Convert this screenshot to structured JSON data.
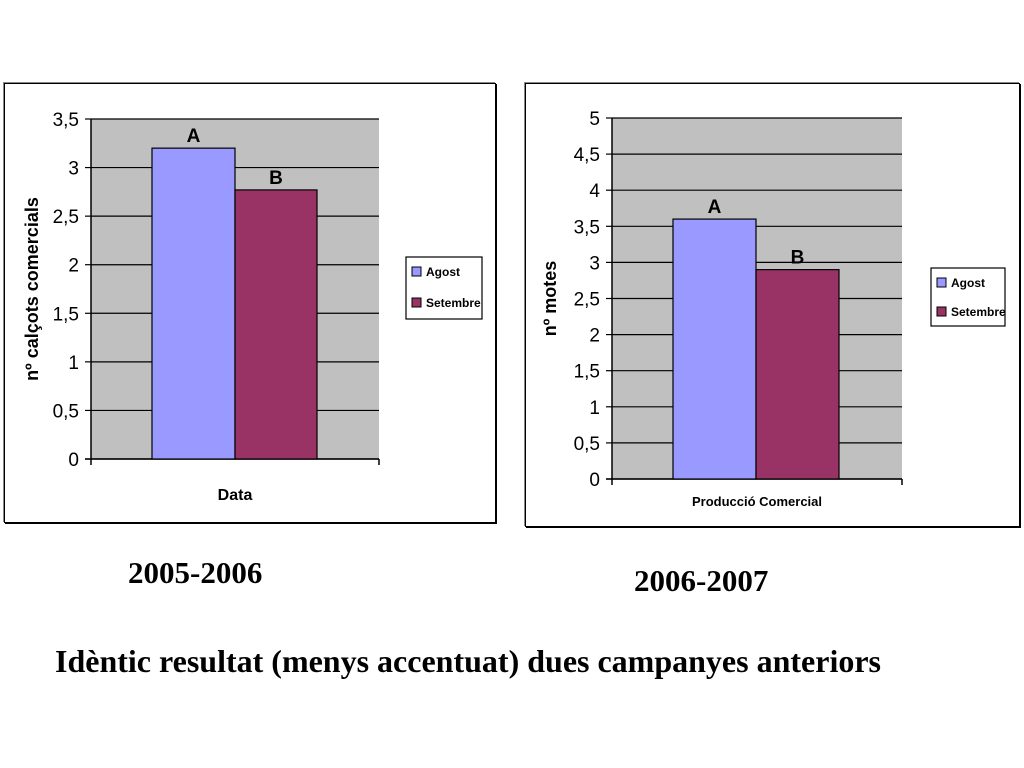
{
  "slide": {
    "period_1": "2005-2006",
    "period_2": "2006-2007",
    "conclusion": "Idèntic resultat (menys accentuat) dues campanyes anteriors"
  },
  "colors": {
    "plot_bg": "#c0c0c0",
    "agost": "#9999ff",
    "setembre": "#993366"
  },
  "chart_data": [
    {
      "type": "bar",
      "xlabel": "Data",
      "ylabel": "nº calçots comercials",
      "ylim": [
        0,
        3.5
      ],
      "yticks": [
        "0",
        "0,5",
        "1",
        "1,5",
        "2",
        "2,5",
        "3",
        "3,5"
      ],
      "grid": true,
      "legend_position": "right",
      "series": [
        {
          "name": "Agost",
          "values": [
            3.2
          ],
          "label": "A"
        },
        {
          "name": "Setembre",
          "values": [
            2.77
          ],
          "label": "B"
        }
      ]
    },
    {
      "type": "bar",
      "xlabel": "Producció Comercial",
      "ylabel": "nº motes",
      "ylim": [
        0,
        5
      ],
      "yticks": [
        "0",
        "0,5",
        "1",
        "1,5",
        "2",
        "2,5",
        "3",
        "3,5",
        "4",
        "4,5",
        "5"
      ],
      "grid": true,
      "legend_position": "right",
      "series": [
        {
          "name": "Agost",
          "values": [
            3.6
          ],
          "label": "A"
        },
        {
          "name": "Setembre",
          "values": [
            2.9
          ],
          "label": "B"
        }
      ]
    }
  ]
}
